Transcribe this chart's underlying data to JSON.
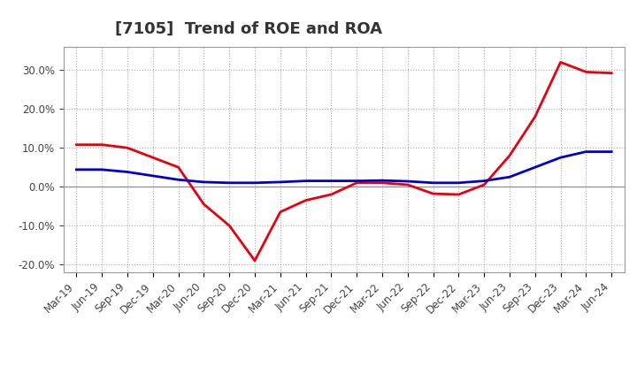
{
  "title": "[7105]  Trend of ROE and ROA",
  "labels": [
    "Mar-19",
    "Jun-19",
    "Sep-19",
    "Dec-19",
    "Mar-20",
    "Jun-20",
    "Sep-20",
    "Dec-20",
    "Mar-21",
    "Jun-21",
    "Sep-21",
    "Dec-21",
    "Mar-22",
    "Jun-22",
    "Sep-22",
    "Dec-22",
    "Mar-23",
    "Jun-23",
    "Sep-23",
    "Dec-23",
    "Mar-24",
    "Jun-24"
  ],
  "ROE": [
    0.108,
    0.108,
    0.1,
    0.075,
    0.05,
    -0.045,
    -0.1,
    -0.19,
    -0.065,
    -0.035,
    -0.02,
    0.01,
    0.01,
    0.005,
    -0.018,
    -0.02,
    0.005,
    0.08,
    0.18,
    0.32,
    0.295,
    0.292
  ],
  "ROA": [
    0.044,
    0.044,
    0.038,
    0.028,
    0.018,
    0.012,
    0.01,
    0.01,
    0.012,
    0.015,
    0.015,
    0.015,
    0.016,
    0.014,
    0.01,
    0.01,
    0.015,
    0.025,
    0.05,
    0.075,
    0.09,
    0.09
  ],
  "ROE_color": "#e8000d",
  "ROA_color": "#0000cc",
  "bg_color": "#ffffff",
  "grid_color": "#aaaaaa",
  "ylim": [
    -0.22,
    0.36
  ],
  "yticks": [
    -0.2,
    -0.1,
    0.0,
    0.1,
    0.2,
    0.3
  ],
  "title_fontsize": 13,
  "legend_fontsize": 10,
  "tick_fontsize": 8.5
}
